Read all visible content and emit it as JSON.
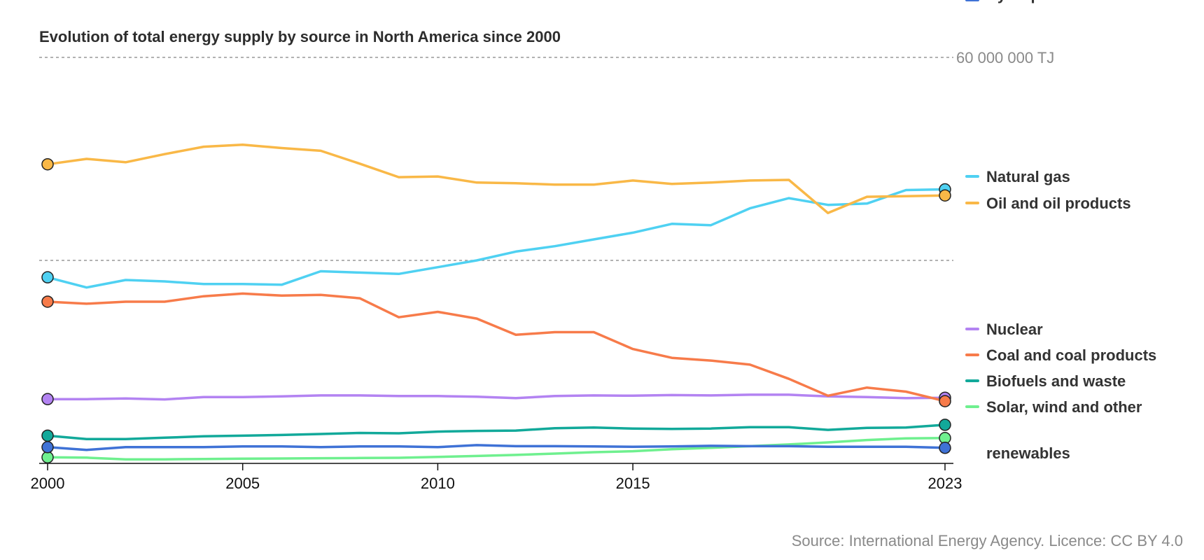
{
  "title": "Evolution of total energy supply by source in North America since 2000",
  "source": "Source: International Energy Agency. Licence: CC BY 4.0",
  "chart_data": {
    "type": "line",
    "title": "Evolution of total energy supply by source in North America since 2000",
    "xlabel": "",
    "ylabel": "",
    "xlim": [
      2000,
      2023
    ],
    "ylim": [
      0,
      60000000
    ],
    "y_unit": "TJ",
    "grid": "horizontal dotted lines at 30 000 000 and 60 000 000",
    "legend_position": "right, labels at line ends",
    "x_ticks": [
      {
        "value": 2000,
        "label": "2000"
      },
      {
        "value": 2005,
        "label": "2005"
      },
      {
        "value": 2010,
        "label": "2010"
      },
      {
        "value": 2015,
        "label": "2015"
      },
      {
        "value": 2023,
        "label": "2023"
      }
    ],
    "y_ticks": [
      {
        "value": 60000000,
        "label": "60 000 000 TJ"
      }
    ],
    "x": [
      2000,
      2001,
      2002,
      2003,
      2004,
      2005,
      2006,
      2007,
      2008,
      2009,
      2010,
      2011,
      2012,
      2013,
      2014,
      2015,
      2016,
      2017,
      2018,
      2019,
      2020,
      2021,
      2022,
      2023
    ],
    "series": [
      {
        "name": "Natural gas",
        "color": "#4fd1f2",
        "values": [
          27500000,
          26000000,
          27100000,
          26900000,
          26500000,
          26500000,
          26400000,
          28400000,
          28200000,
          28000000,
          29000000,
          30000000,
          31300000,
          32100000,
          33100000,
          34100000,
          35400000,
          35200000,
          37700000,
          39200000,
          38200000,
          38400000,
          40400000,
          40500000
        ]
      },
      {
        "name": "Oil and oil products",
        "color": "#f9b847",
        "values": [
          44200000,
          45000000,
          44500000,
          45700000,
          46800000,
          47100000,
          46600000,
          46200000,
          44300000,
          42300000,
          42400000,
          41500000,
          41400000,
          41200000,
          41200000,
          41800000,
          41300000,
          41500000,
          41800000,
          41900000,
          37000000,
          39400000,
          39500000,
          39600000
        ]
      },
      {
        "name": "Nuclear",
        "color": "#b383f2",
        "values": [
          9500000,
          9500000,
          9600000,
          9450000,
          9800000,
          9800000,
          9900000,
          10050000,
          10050000,
          9950000,
          9950000,
          9850000,
          9650000,
          9950000,
          10050000,
          10000000,
          10100000,
          10050000,
          10150000,
          10150000,
          9900000,
          9800000,
          9650000,
          9700000
        ]
      },
      {
        "name": "Coal and coal products",
        "color": "#f77b4a",
        "values": [
          23900000,
          23600000,
          23900000,
          23900000,
          24700000,
          25100000,
          24800000,
          24900000,
          24400000,
          21600000,
          22400000,
          21400000,
          19000000,
          19400000,
          19400000,
          16900000,
          15600000,
          15200000,
          14600000,
          12500000,
          10000000,
          11200000,
          10600000,
          9200000
        ]
      },
      {
        "name": "Biofuels and waste",
        "color": "#12a99a",
        "values": [
          4100000,
          3600000,
          3600000,
          3800000,
          4000000,
          4100000,
          4200000,
          4350000,
          4500000,
          4450000,
          4700000,
          4800000,
          4850000,
          5200000,
          5300000,
          5150000,
          5100000,
          5150000,
          5350000,
          5350000,
          4950000,
          5250000,
          5300000,
          5700000
        ]
      },
      {
        "name": "Solar, wind and other renewables",
        "color": "#6ff08f",
        "values": [
          900000,
          850000,
          600000,
          600000,
          650000,
          700000,
          720000,
          770000,
          800000,
          830000,
          950000,
          1100000,
          1250000,
          1450000,
          1650000,
          1800000,
          2100000,
          2300000,
          2550000,
          2800000,
          3100000,
          3450000,
          3700000,
          3750000
        ]
      },
      {
        "name": "Hydropower",
        "color": "#3f72d6",
        "values": [
          2400000,
          2000000,
          2400000,
          2400000,
          2400000,
          2500000,
          2500000,
          2400000,
          2500000,
          2500000,
          2400000,
          2700000,
          2550000,
          2550000,
          2500000,
          2450000,
          2500000,
          2600000,
          2550000,
          2550000,
          2450000,
          2450000,
          2450000,
          2300000
        ]
      }
    ],
    "legend": [
      {
        "label_lines": [
          "Natural gas"
        ],
        "color": "#4fd1f2"
      },
      {
        "label_lines": [
          "Oil and oil products"
        ],
        "color": "#f9b847"
      },
      {
        "label_lines": [
          "Nuclear"
        ],
        "color": "#b383f2"
      },
      {
        "label_lines": [
          "Coal and coal products"
        ],
        "color": "#f77b4a"
      },
      {
        "label_lines": [
          "Biofuels and waste"
        ],
        "color": "#12a99a"
      },
      {
        "label_lines": [
          "Solar, wind and other",
          "renewables"
        ],
        "color": "#6ff08f"
      },
      {
        "label_lines": [
          "Hydropower"
        ],
        "color": "#3f72d6"
      }
    ]
  }
}
